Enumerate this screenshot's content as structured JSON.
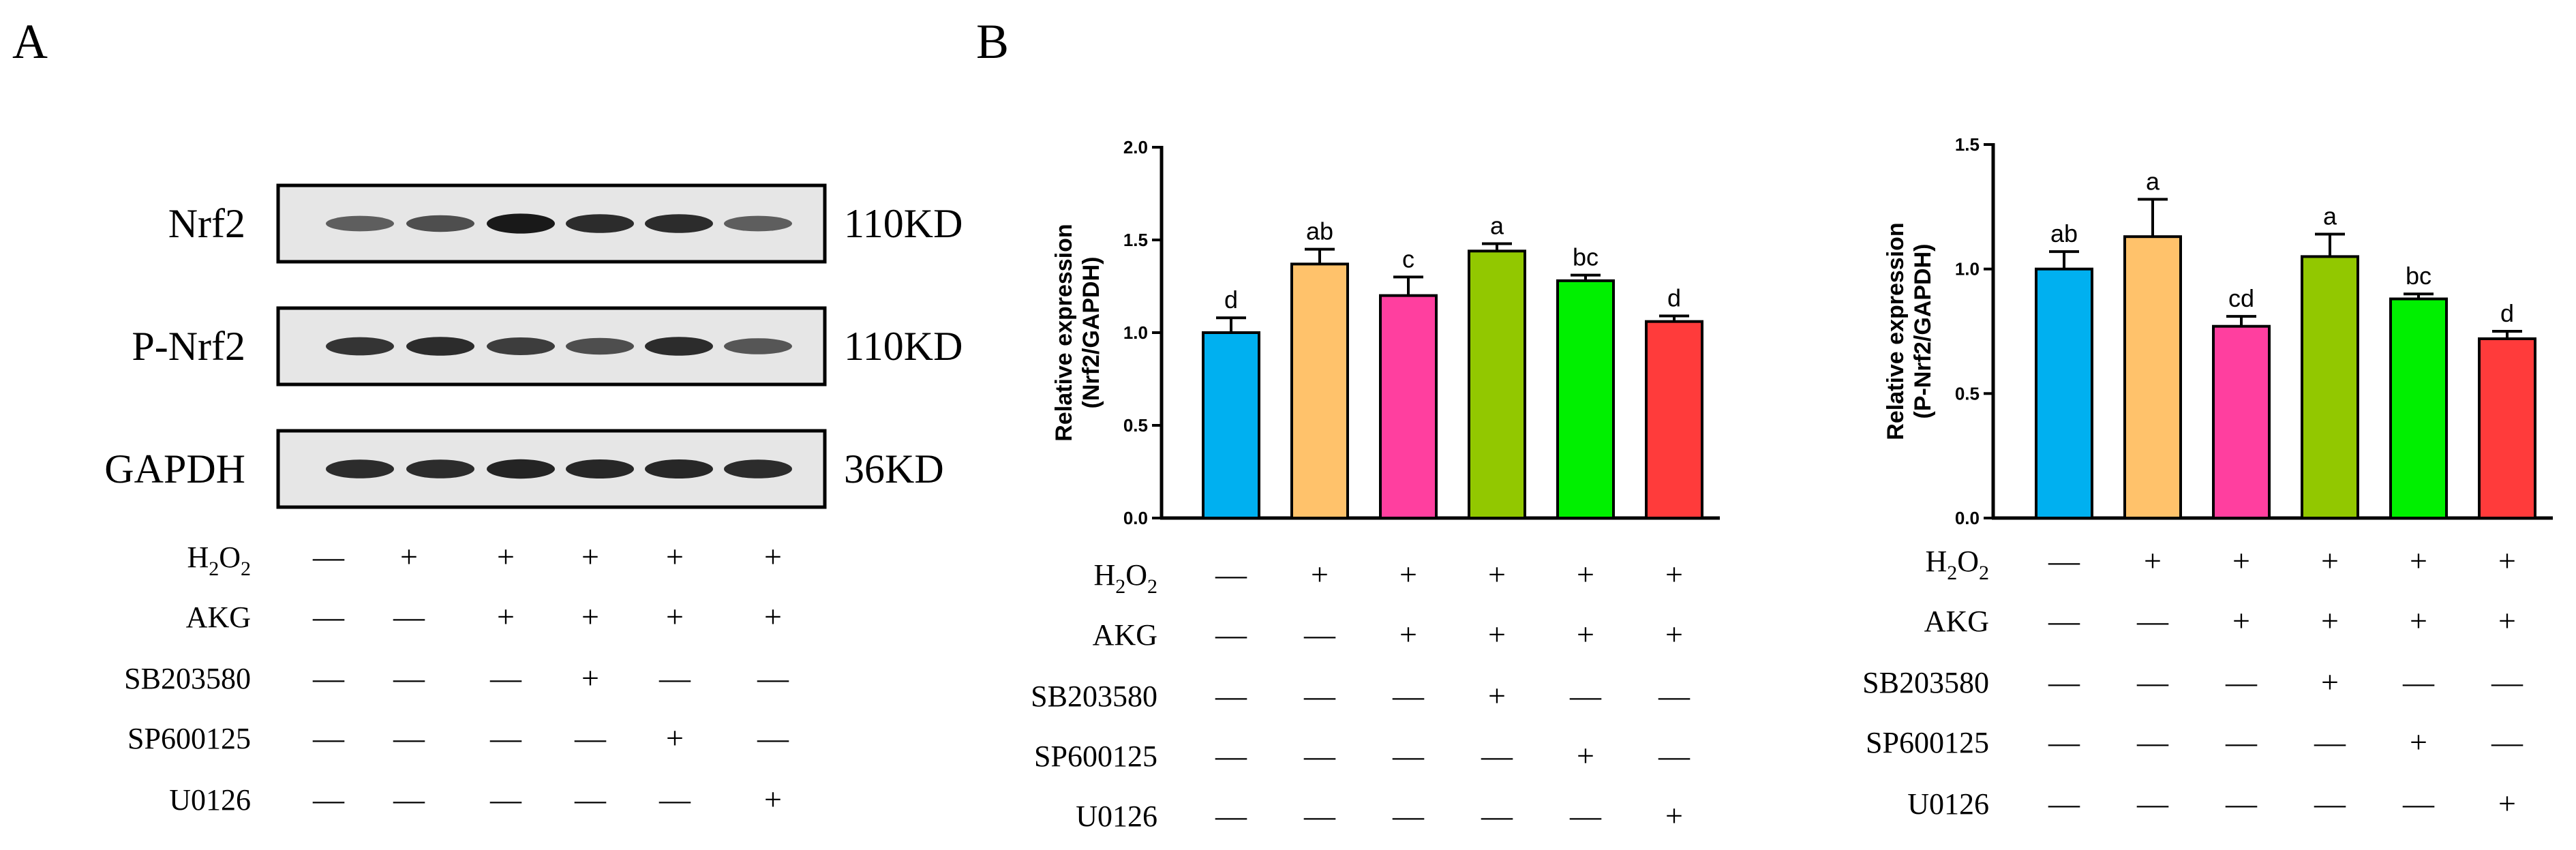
{
  "figure": {
    "panel_a_label": "A",
    "panel_b_label": "B"
  },
  "blot": {
    "rows": [
      {
        "name": "Nrf2",
        "size": "110KD",
        "intensity": [
          0.55,
          0.65,
          0.95,
          0.85,
          0.85,
          0.55
        ]
      },
      {
        "name": "P-Nrf2",
        "size": "110KD",
        "intensity": [
          0.8,
          0.85,
          0.75,
          0.65,
          0.85,
          0.6
        ]
      },
      {
        "name": "GAPDH",
        "size": "36KD",
        "intensity": [
          0.85,
          0.85,
          0.9,
          0.88,
          0.88,
          0.85
        ]
      }
    ]
  },
  "treatments": {
    "rows": [
      {
        "name": "H2O2",
        "main": "H",
        "s1": "2",
        "mid": "O",
        "s2": "2",
        "signs": [
          "—",
          "+",
          "+",
          "+",
          "+",
          "+"
        ]
      },
      {
        "name": "AKG",
        "signs": [
          "—",
          "—",
          "+",
          "+",
          "+",
          "+"
        ]
      },
      {
        "name": "SB203580",
        "signs": [
          "—",
          "—",
          "—",
          "+",
          "—",
          "—"
        ]
      },
      {
        "name": "SP600125",
        "signs": [
          "—",
          "—",
          "—",
          "—",
          "+",
          "—"
        ]
      },
      {
        "name": "U0126",
        "signs": [
          "—",
          "—",
          "—",
          "—",
          "—",
          "+"
        ]
      }
    ]
  },
  "chart_data": [
    {
      "type": "bar",
      "ylabel_line1": "Relative expression",
      "ylabel_line2": "(Nrf2/GAPDH)",
      "ylim": [
        0,
        2.0
      ],
      "yticks": [
        "0.0",
        "0.5",
        "1.0",
        "1.5",
        "2.0"
      ],
      "ytick_values": [
        0,
        0.5,
        1.0,
        1.5,
        2.0
      ],
      "values": [
        1.0,
        1.37,
        1.2,
        1.44,
        1.28,
        1.06
      ],
      "errors": [
        0.08,
        0.08,
        0.1,
        0.04,
        0.03,
        0.03
      ],
      "significance": [
        "d",
        "ab",
        "c",
        "a",
        "bc",
        "d"
      ],
      "colors": [
        "#00b0f0",
        "#ffc26b",
        "#ff3f9f",
        "#92c800",
        "#00f000",
        "#ff3b3b"
      ]
    },
    {
      "type": "bar",
      "ylabel_line1": "Relative expression",
      "ylabel_line2": "(P-Nrf2/GAPDH)",
      "ylim": [
        0,
        1.5
      ],
      "yticks": [
        "0.0",
        "0.5",
        "1.0",
        "1.5"
      ],
      "ytick_values": [
        0,
        0.5,
        1.0,
        1.5
      ],
      "values": [
        1.0,
        1.13,
        0.77,
        1.05,
        0.88,
        0.72
      ],
      "errors": [
        0.07,
        0.15,
        0.04,
        0.09,
        0.02,
        0.03
      ],
      "significance": [
        "ab",
        "a",
        "cd",
        "a",
        "bc",
        "d"
      ],
      "colors": [
        "#00b0f0",
        "#ffc26b",
        "#ff3f9f",
        "#92c800",
        "#00f000",
        "#ff3b3b"
      ]
    }
  ]
}
